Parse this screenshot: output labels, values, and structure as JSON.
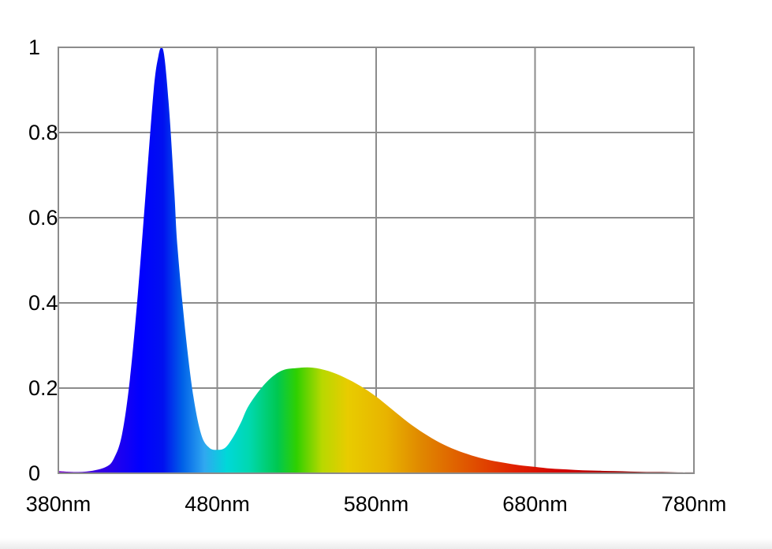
{
  "chart_data": {
    "type": "area",
    "title": "",
    "xlabel": "",
    "ylabel": "",
    "xlim": [
      380,
      780
    ],
    "ylim": [
      0,
      1
    ],
    "grid": true,
    "x_ticks": [
      380,
      480,
      580,
      680,
      780
    ],
    "x_tick_labels": [
      "380nm",
      "480nm",
      "580nm",
      "680nm",
      "780nm"
    ],
    "y_ticks": [
      0,
      0.2,
      0.4,
      0.6,
      0.8,
      1
    ],
    "y_tick_labels": [
      "0",
      "0.2",
      "0.4",
      "0.6",
      "0.8",
      "1"
    ],
    "fill": "visible-spectrum gradient (violet to red)",
    "series": [
      {
        "x": [
          380,
          390,
          400,
          410,
          415,
          420,
          425,
          430,
          435,
          440,
          443,
          445,
          447,
          450,
          453,
          455,
          460,
          465,
          470,
          475,
          480,
          485,
          490,
          495,
          500,
          510,
          520,
          530,
          540,
          550,
          560,
          570,
          580,
          590,
          600,
          610,
          620,
          630,
          640,
          650,
          660,
          670,
          680,
          690,
          700,
          710,
          720,
          730,
          740,
          750,
          760,
          770,
          780
        ],
        "y": [
          0.005,
          0.003,
          0.005,
          0.015,
          0.035,
          0.09,
          0.22,
          0.42,
          0.66,
          0.9,
          0.98,
          1.0,
          0.97,
          0.84,
          0.66,
          0.53,
          0.33,
          0.18,
          0.09,
          0.06,
          0.055,
          0.06,
          0.085,
          0.12,
          0.16,
          0.21,
          0.24,
          0.247,
          0.248,
          0.24,
          0.225,
          0.205,
          0.18,
          0.15,
          0.12,
          0.094,
          0.072,
          0.055,
          0.042,
          0.032,
          0.025,
          0.019,
          0.015,
          0.011,
          0.009,
          0.007,
          0.006,
          0.005,
          0.004,
          0.003,
          0.003,
          0.002,
          0.002
        ]
      }
    ]
  }
}
